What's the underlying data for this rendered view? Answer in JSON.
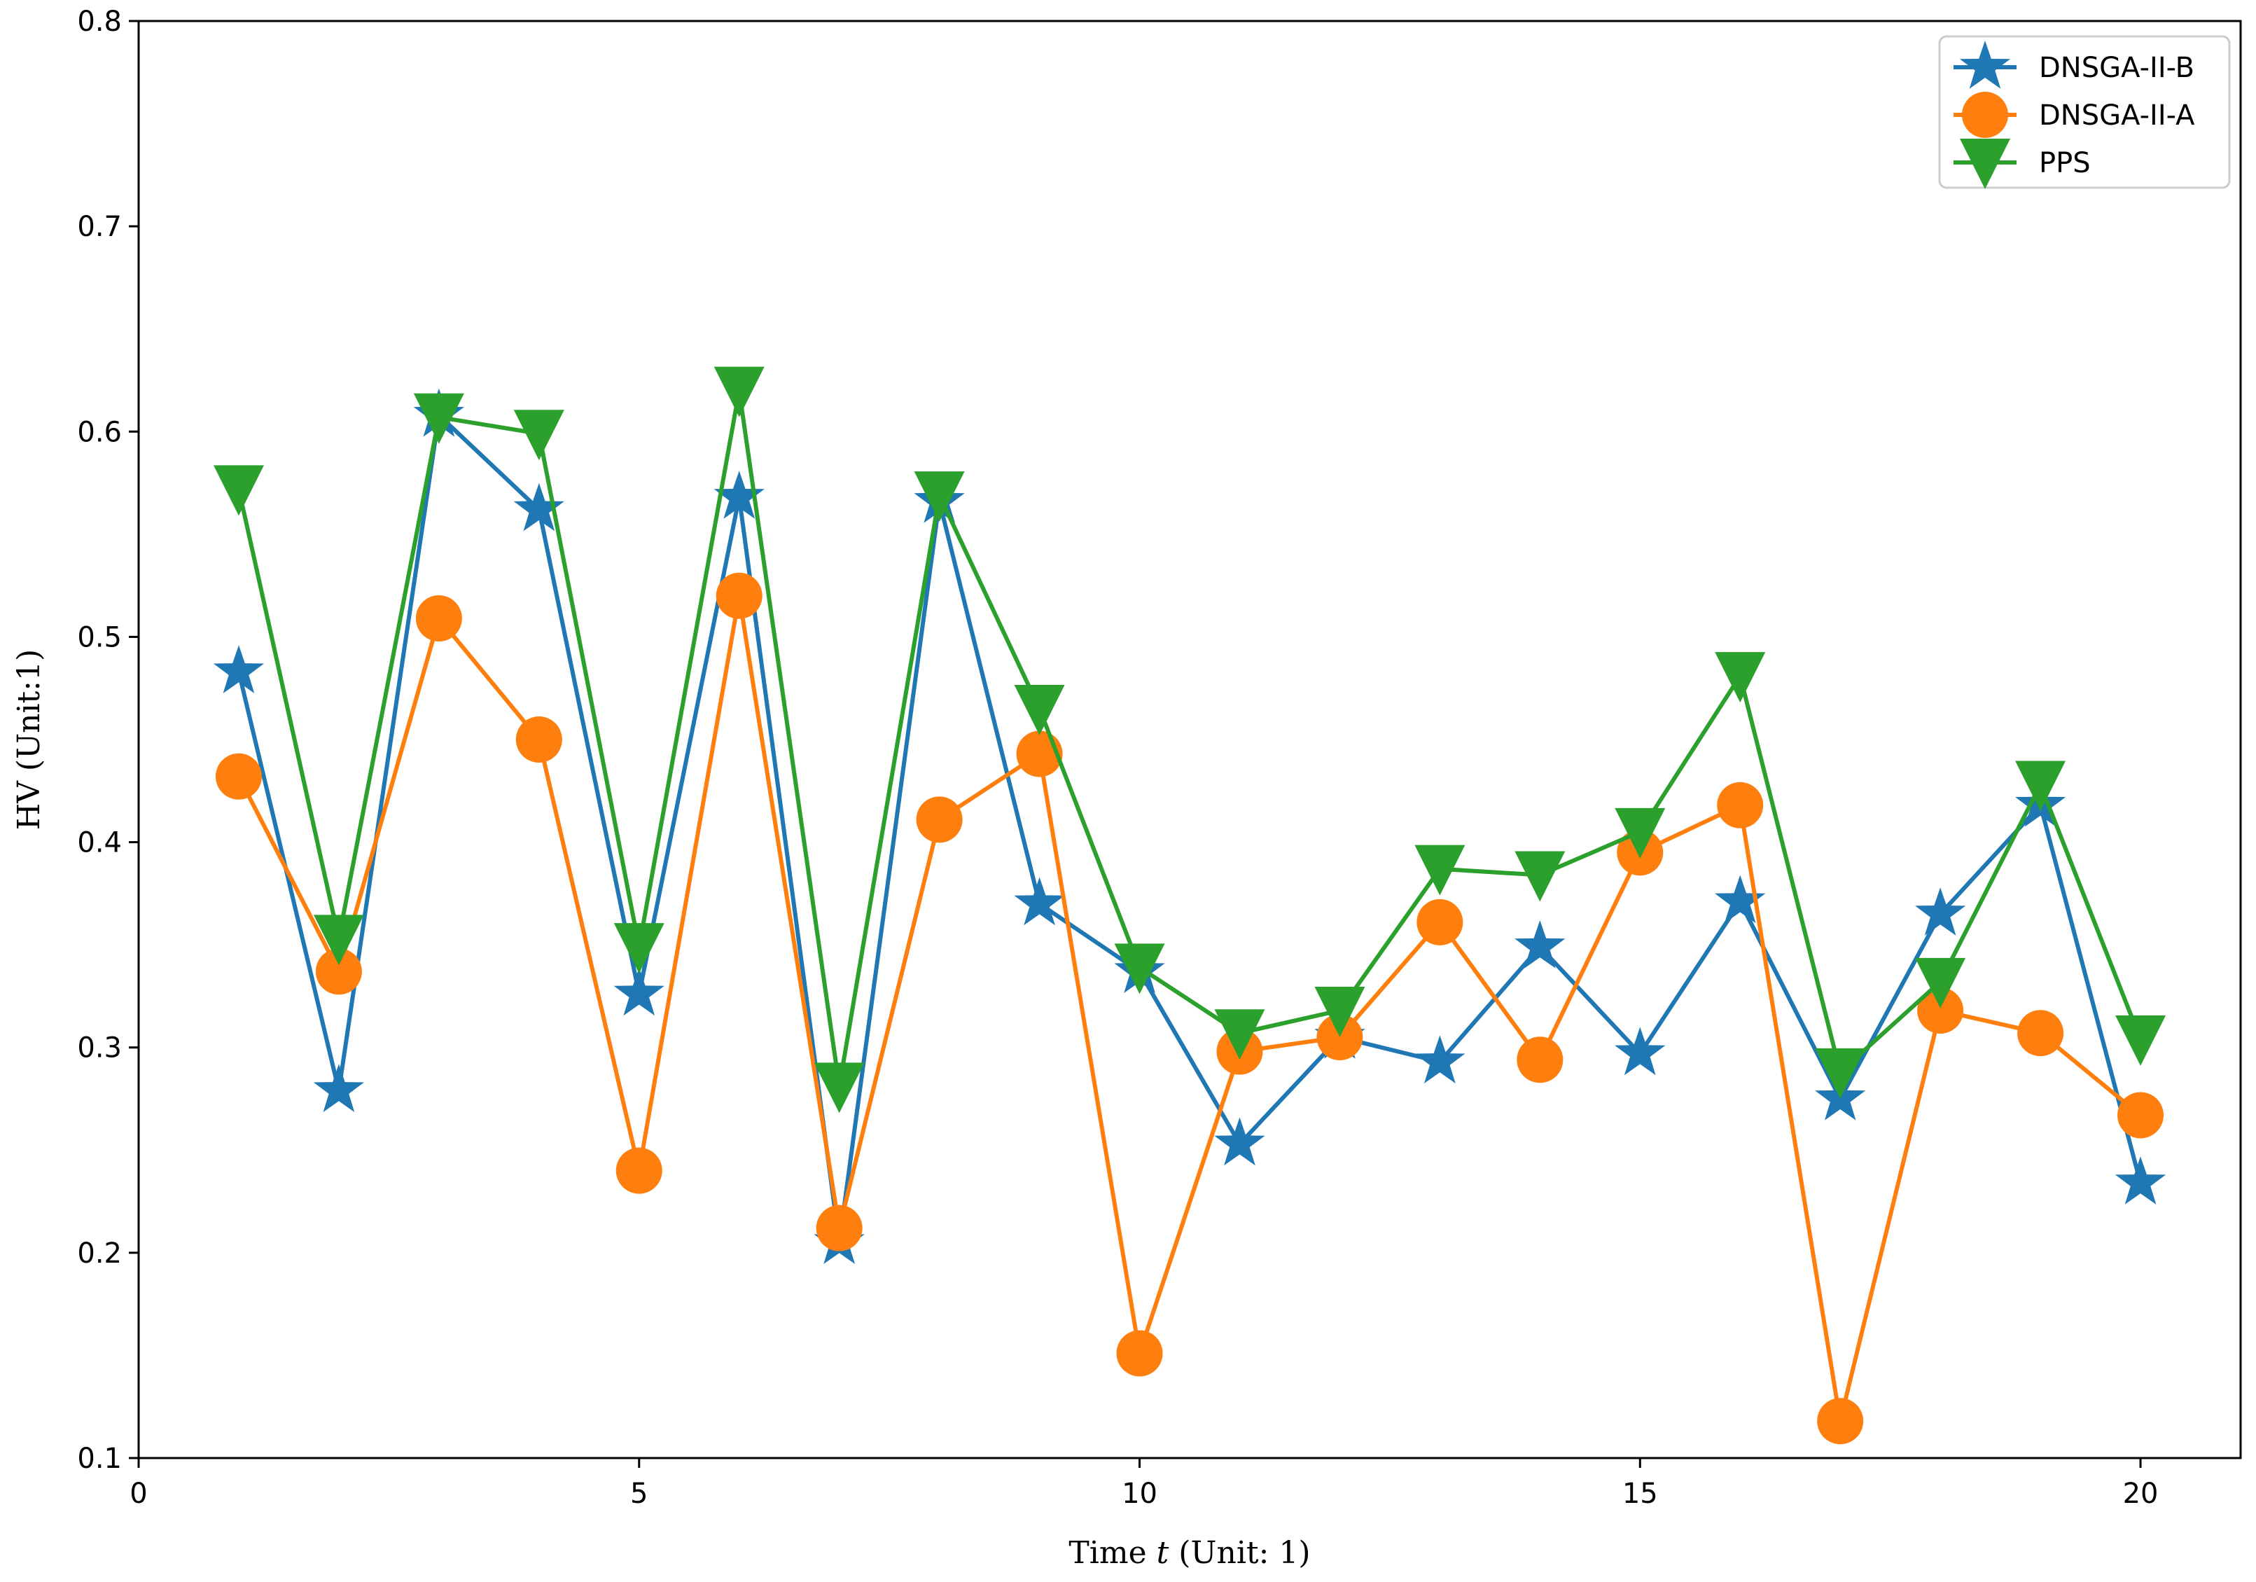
{
  "chart_data": {
    "type": "line",
    "xlabel_prefix": "Time ",
    "xlabel_var": "t",
    "xlabel_suffix": " (Unit: 1)",
    "ylabel": "HV (Unit:1)",
    "xlim": [
      0,
      21
    ],
    "ylim": [
      0.1,
      0.8
    ],
    "xticks": [
      0,
      5,
      10,
      15,
      20
    ],
    "yticks": [
      0.1,
      0.2,
      0.3,
      0.4,
      0.5,
      0.6,
      0.7,
      0.8
    ],
    "x": [
      1,
      2,
      3,
      4,
      5,
      6,
      7,
      8,
      9,
      10,
      11,
      12,
      13,
      14,
      15,
      16,
      17,
      18,
      19,
      20
    ],
    "legend_position": "top-right",
    "grid": false,
    "series": [
      {
        "name": "DNSGA-II-B",
        "color": "#1f77b4",
        "marker": "star",
        "values": [
          0.483,
          0.279,
          0.608,
          0.562,
          0.326,
          0.568,
          0.205,
          0.566,
          0.37,
          0.337,
          0.253,
          0.305,
          0.293,
          0.349,
          0.297,
          0.371,
          0.275,
          0.365,
          0.418,
          0.234
        ]
      },
      {
        "name": "DNSGA-II-A",
        "color": "#ff7f0e",
        "marker": "circle",
        "values": [
          0.432,
          0.337,
          0.509,
          0.45,
          0.24,
          0.52,
          0.212,
          0.411,
          0.443,
          0.151,
          0.298,
          0.305,
          0.361,
          0.294,
          0.395,
          0.418,
          0.118,
          0.318,
          0.307,
          0.267
        ]
      },
      {
        "name": "PPS",
        "color": "#2ca02c",
        "marker": "triangle-down",
        "values": [
          0.572,
          0.353,
          0.607,
          0.599,
          0.349,
          0.62,
          0.281,
          0.569,
          0.465,
          0.339,
          0.307,
          0.318,
          0.387,
          0.384,
          0.405,
          0.481,
          0.288,
          0.332,
          0.428,
          0.304
        ]
      }
    ]
  }
}
